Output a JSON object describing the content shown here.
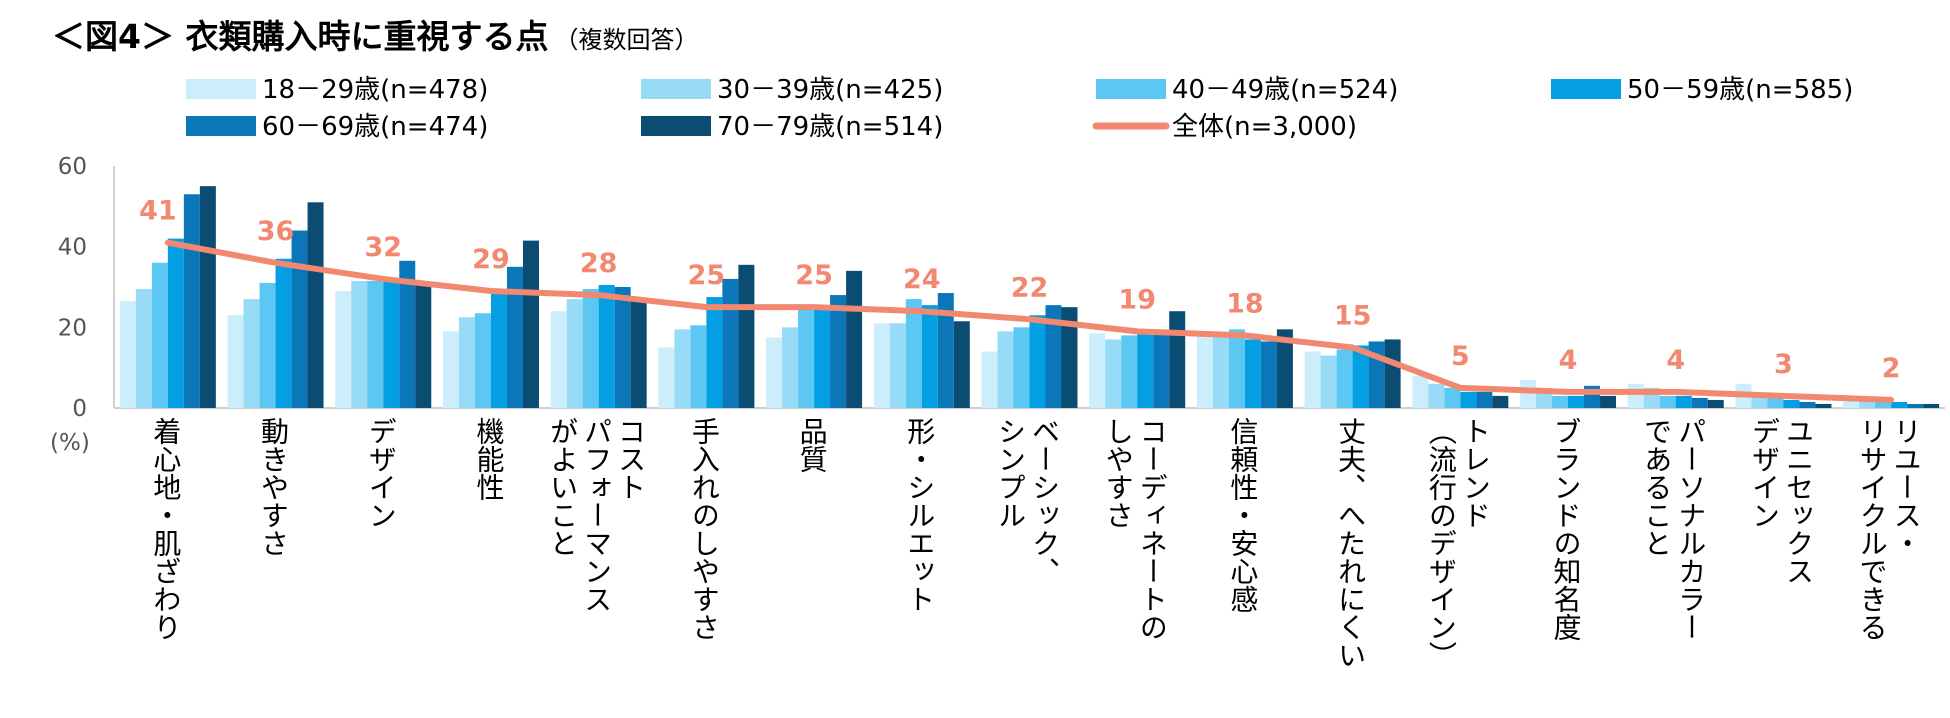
{
  "title": {
    "main": "＜図4＞ 衣類購入時に重視する点",
    "sub": "（複数回答）"
  },
  "chart_data": {
    "type": "bar",
    "title": "＜図4＞ 衣類購入時に重視する点（複数回答）",
    "ylabel": "(%)",
    "xlabel": "",
    "ylim": [
      0,
      60
    ],
    "yticks": [
      0,
      20,
      40,
      60
    ],
    "categories": [
      [
        "着心地・肌ざわり"
      ],
      [
        "動きやすさ"
      ],
      [
        "デザイン"
      ],
      [
        "機能性"
      ],
      [
        "コスト",
        "パフォーマンス",
        "がよいこと"
      ],
      [
        "手入れのしやすさ"
      ],
      [
        "品質"
      ],
      [
        "形・シルエット"
      ],
      [
        "ベーシック、",
        "シンプル"
      ],
      [
        "コーディネートの",
        "しやすさ"
      ],
      [
        "信頼性・安心感"
      ],
      [
        "丈夫、へたれにくい"
      ],
      [
        "トレンド",
        "（流行のデザイン）"
      ],
      [
        "ブランドの知名度"
      ],
      [
        "パーソナルカラー",
        "であること"
      ],
      [
        "ユニセックス",
        "デザイン"
      ],
      [
        "リユース・",
        "リサイクルできる"
      ]
    ],
    "series": [
      {
        "name": "18－29歳(n=478)",
        "color": "#CCEDFB",
        "values": [
          26.5,
          23,
          29,
          19,
          24,
          15,
          17.5,
          21,
          14,
          18.5,
          18,
          14,
          8,
          7,
          6,
          6,
          2.5
        ]
      },
      {
        "name": "30－39歳(n=425)",
        "color": "#97DBF6",
        "values": [
          29.5,
          27,
          31.5,
          22.5,
          27,
          19.5,
          20,
          21,
          19,
          17,
          18.5,
          13,
          6,
          5,
          5,
          3,
          2
        ]
      },
      {
        "name": "40－49歳(n=524)",
        "color": "#5CC7F2",
        "values": [
          36,
          31,
          31.5,
          23.5,
          29.5,
          20.5,
          24.5,
          27,
          20,
          18,
          19.5,
          14.5,
          5,
          3,
          3,
          3,
          2
        ]
      },
      {
        "name": "50－59歳(n=585)",
        "color": "#049FE3",
        "values": [
          42,
          37,
          32,
          29,
          30.5,
          27.5,
          25,
          25.5,
          23,
          19,
          17,
          15.5,
          4,
          3,
          3,
          2,
          1.5
        ]
      },
      {
        "name": "60－69歳(n=474)",
        "color": "#0B76B8",
        "values": [
          53,
          44,
          36.5,
          35,
          30,
          32,
          28,
          28.5,
          25.5,
          19,
          16.5,
          16.5,
          4,
          5.5,
          2.5,
          1.5,
          1
        ]
      },
      {
        "name": "70－79歳(n=514)",
        "color": "#0B4C73",
        "values": [
          55,
          51,
          31,
          41.5,
          26.5,
          35.5,
          34,
          21.5,
          25,
          24,
          19.5,
          17,
          3,
          3,
          2,
          1,
          1
        ]
      }
    ],
    "line": {
      "name": "全体(n=3,000)",
      "color": "#F28870",
      "values": [
        41,
        36,
        32,
        29,
        28,
        25,
        25,
        24,
        22,
        19,
        18,
        15,
        5,
        4,
        4,
        3,
        2
      ]
    }
  }
}
